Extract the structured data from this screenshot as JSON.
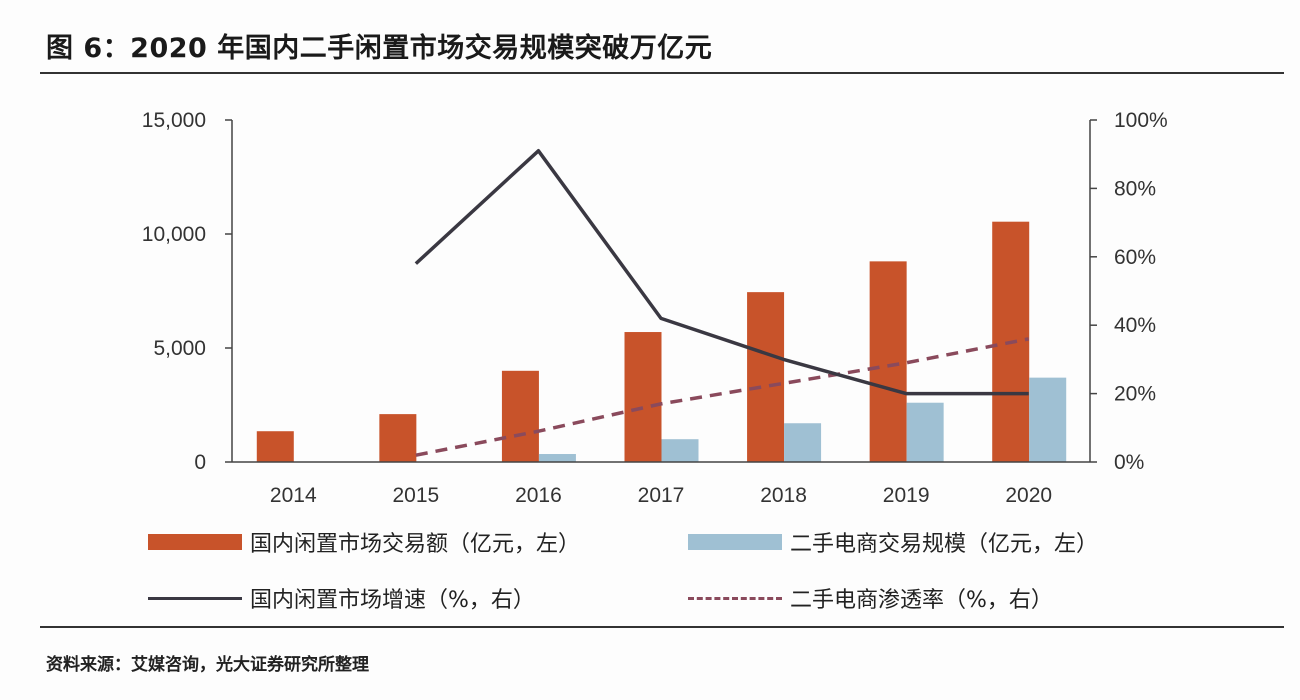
{
  "title": "图 6：2020 年国内二手闲置市场交易规模突破万亿元",
  "source": "资料来源：艾媒咨询，光大证券研究所整理",
  "colors": {
    "market_bar": "#c8532a",
    "ecommerce_bar": "#9fc0d3",
    "growth_line": "#3a3842",
    "penetration_line": "#8a4a5c"
  },
  "chart_data": {
    "type": "bar+line",
    "categories": [
      "2014",
      "2015",
      "2016",
      "2017",
      "2018",
      "2019",
      "2020"
    ],
    "left_axis": {
      "ticks": [
        "0",
        "5,000",
        "10,000",
        "15,000"
      ],
      "range": [
        0,
        15000
      ]
    },
    "right_axis": {
      "ticks": [
        "0%",
        "20%",
        "40%",
        "60%",
        "80%",
        "100%"
      ],
      "range": [
        0,
        100
      ]
    },
    "series": [
      {
        "name": "国内闲置市场交易额（亿元，左）",
        "type": "bar",
        "axis": "left",
        "values": [
          1350,
          2100,
          4000,
          5700,
          7450,
          8800,
          10540
        ]
      },
      {
        "name": "二手电商交易规模（亿元，左）",
        "type": "bar",
        "axis": "left",
        "values": [
          null,
          0,
          350,
          1000,
          1700,
          2600,
          3700
        ]
      },
      {
        "name": "国内闲置市场增速（%，右）",
        "type": "line",
        "axis": "right",
        "values": [
          null,
          58,
          91,
          42,
          30,
          20,
          20
        ]
      },
      {
        "name": "二手电商渗透率（%，右）",
        "type": "dashed-line",
        "axis": "right",
        "values": [
          null,
          2,
          9,
          17,
          23,
          29,
          36
        ]
      }
    ]
  }
}
